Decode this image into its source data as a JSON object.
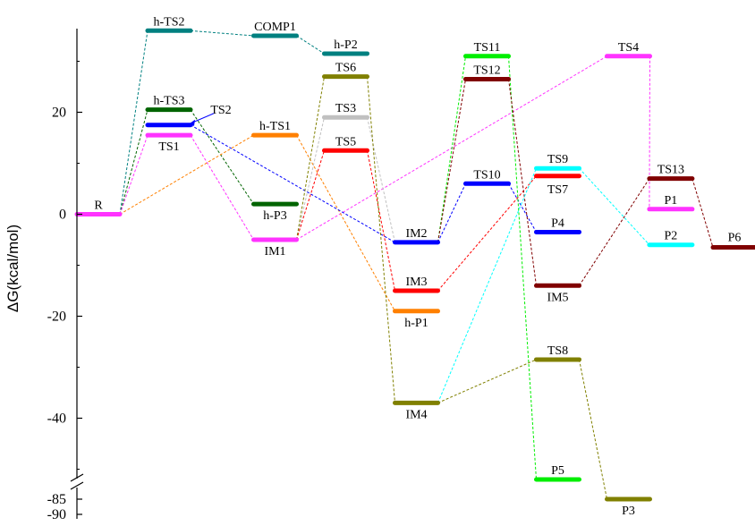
{
  "chart_data": {
    "type": "line",
    "ylabel": "ΔG(kcal/mol)",
    "y_ticks": [
      {
        "label": "20",
        "value": 20
      },
      {
        "label": "0",
        "value": 0
      },
      {
        "label": "-20",
        "value": -20
      },
      {
        "label": "-40",
        "value": -40
      },
      {
        "label": "-85",
        "value": -85
      },
      {
        "label": "-90",
        "value": -90
      }
    ],
    "ylim": [
      -90,
      37
    ],
    "y_axis_break": [
      -52,
      -82
    ],
    "levels": [
      {
        "id": "R",
        "label": "R",
        "x": 0,
        "y": 0,
        "color": "#ff33ff"
      },
      {
        "id": "hTS2",
        "label": "h-TS2",
        "x": 1,
        "y": 36,
        "color": "#008080"
      },
      {
        "id": "hTS3",
        "label": "h-TS3",
        "x": 1,
        "y": 20.5,
        "color": "#006400"
      },
      {
        "id": "TS2",
        "label": "TS2",
        "x": 1,
        "y": 17.5,
        "color": "#0000ff"
      },
      {
        "id": "TS1",
        "label": "TS1",
        "x": 1,
        "y": 15.5,
        "color": "#ff33ff"
      },
      {
        "id": "COMP1",
        "label": "COMP1",
        "x": 2.5,
        "y": 35,
        "color": "#008080"
      },
      {
        "id": "hTS1",
        "label": "h-TS1",
        "x": 2.5,
        "y": 15.5,
        "color": "#ff8000"
      },
      {
        "id": "hP3",
        "label": "h-P3",
        "x": 2.5,
        "y": 2,
        "color": "#006400"
      },
      {
        "id": "IM1",
        "label": "IM1",
        "x": 2.5,
        "y": -5,
        "color": "#ff33ff"
      },
      {
        "id": "hP2",
        "label": "h-P2",
        "x": 3.5,
        "y": 31.5,
        "color": "#008080"
      },
      {
        "id": "TS6",
        "label": "TS6",
        "x": 3.5,
        "y": 27,
        "color": "#808000"
      },
      {
        "id": "TS3",
        "label": "TS3",
        "x": 3.5,
        "y": 19,
        "color": "#c0c0c0"
      },
      {
        "id": "TS5",
        "label": "TS5",
        "x": 3.5,
        "y": 12.5,
        "color": "#ff0000"
      },
      {
        "id": "IM2",
        "label": "IM2",
        "x": 4.5,
        "y": -5.5,
        "color": "#0000ff"
      },
      {
        "id": "IM3",
        "label": "IM3",
        "x": 4.5,
        "y": -15,
        "color": "#ff0000"
      },
      {
        "id": "hP1",
        "label": "h-P1",
        "x": 4.5,
        "y": -19,
        "color": "#ff8000"
      },
      {
        "id": "IM4",
        "label": "IM4",
        "x": 4.5,
        "y": -37,
        "color": "#808000"
      },
      {
        "id": "TS11",
        "label": "TS11",
        "x": 5.5,
        "y": 31,
        "color": "#00ee00"
      },
      {
        "id": "TS12",
        "label": "TS12",
        "x": 5.5,
        "y": 26.5,
        "color": "#800000"
      },
      {
        "id": "TS10",
        "label": "TS10",
        "x": 5.5,
        "y": 6,
        "color": "#0000ff"
      },
      {
        "id": "TS9",
        "label": "TS9",
        "x": 6.5,
        "y": 9,
        "color": "#00ffff"
      },
      {
        "id": "TS7",
        "label": "TS7",
        "x": 6.5,
        "y": 7.5,
        "color": "#ff0000"
      },
      {
        "id": "P4",
        "label": "P4",
        "x": 6.5,
        "y": -3.5,
        "color": "#0000ff"
      },
      {
        "id": "IM5",
        "label": "IM5",
        "x": 6.5,
        "y": -14,
        "color": "#800000"
      },
      {
        "id": "TS8",
        "label": "TS8",
        "x": 6.5,
        "y": -28.5,
        "color": "#808000"
      },
      {
        "id": "P5",
        "label": "P5",
        "x": 6.5,
        "y": -52,
        "color": "#00ee00"
      },
      {
        "id": "TS4",
        "label": "TS4",
        "x": 7.5,
        "y": 31,
        "color": "#ff33ff"
      },
      {
        "id": "P3",
        "label": "P3",
        "x": 7.5,
        "y": -52,
        "color": "#808000"
      },
      {
        "id": "TS13",
        "label": "TS13",
        "x": 8.1,
        "y": 7,
        "color": "#800000"
      },
      {
        "id": "P1",
        "label": "P1",
        "x": 8.1,
        "y": 1,
        "color": "#ff33ff"
      },
      {
        "id": "P2",
        "label": "P2",
        "x": 8.1,
        "y": -6,
        "color": "#00ffff"
      },
      {
        "id": "P6",
        "label": "P6",
        "x": 9.0,
        "y": -6.5,
        "color": "#800000"
      }
    ],
    "paths": [
      {
        "color": "#008080",
        "nodes": [
          "R",
          "hTS2",
          "COMP1",
          "hP2"
        ]
      },
      {
        "color": "#006400",
        "nodes": [
          "R",
          "hTS3",
          "hP3"
        ]
      },
      {
        "color": "#ff33ff",
        "nodes": [
          "R",
          "TS1",
          "IM1",
          "TS4",
          "P1"
        ]
      },
      {
        "color": "#ff8000",
        "nodes": [
          "R",
          "hTS1",
          "hP1"
        ]
      },
      {
        "color": "#0000ff",
        "nodes": [
          "TS2",
          "IM2",
          "TS10",
          "P4"
        ]
      },
      {
        "color": "#c0c0c0",
        "nodes": [
          "IM1",
          "TS3",
          "IM2"
        ]
      },
      {
        "color": "#ff0000",
        "nodes": [
          "IM1",
          "TS5",
          "IM3",
          "TS7"
        ]
      },
      {
        "color": "#808000",
        "nodes": [
          "IM1",
          "TS6",
          "IM4",
          "TS8",
          "P3"
        ]
      },
      {
        "color": "#00ee00",
        "nodes": [
          "IM2",
          "TS11",
          "P5"
        ]
      },
      {
        "color": "#800000",
        "nodes": [
          "IM2",
          "TS12",
          "IM5",
          "TS13",
          "P6"
        ]
      },
      {
        "color": "#00ffff",
        "nodes": [
          "IM4",
          "TS9",
          "P2"
        ]
      }
    ],
    "annotations": [
      {
        "text": "TS2",
        "arrow_to": "TS2"
      }
    ]
  }
}
